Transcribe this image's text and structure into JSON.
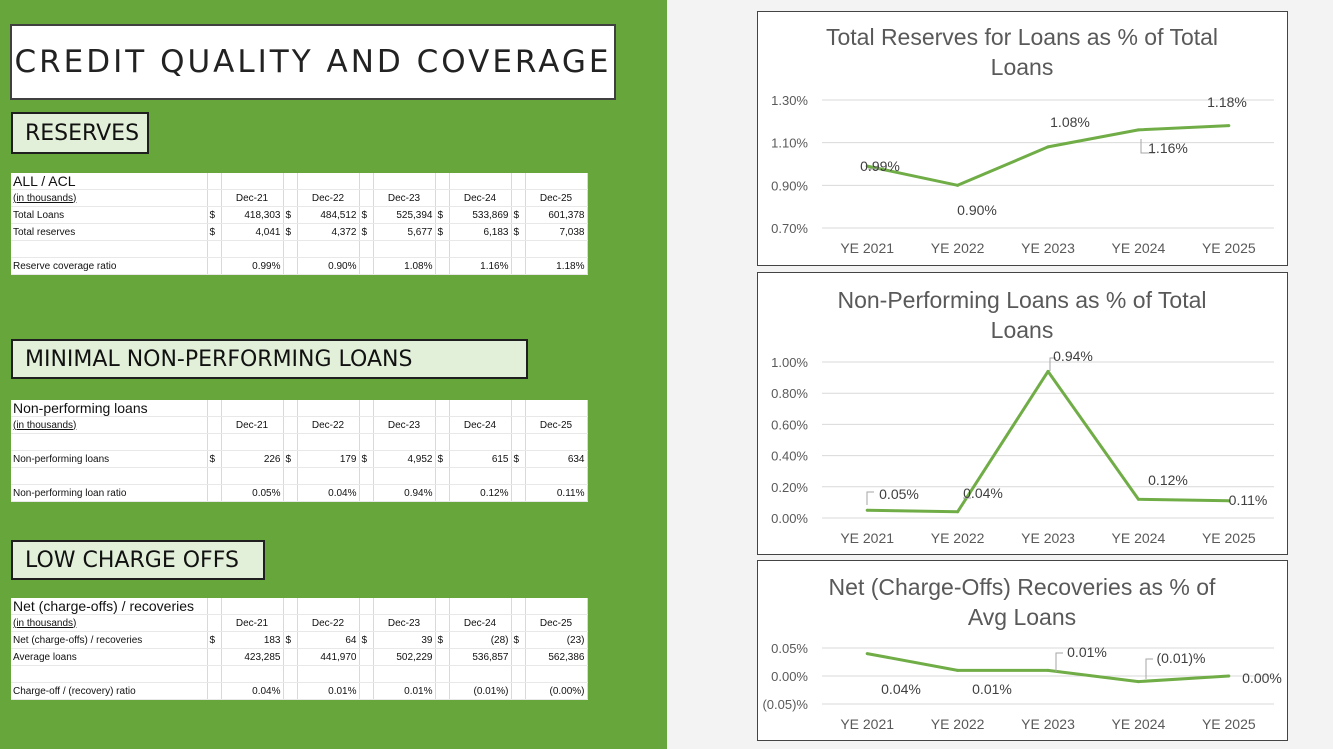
{
  "title": "CREDIT QUALITY AND COVERAGE",
  "sections": {
    "reserves": "RESERVES",
    "npl": "MINIMAL NON-PERFORMING LOANS",
    "chargeoffs": "LOW CHARGE OFFS"
  },
  "tables": {
    "reserves": {
      "title": "ALL / ACL",
      "units": "(in thousands)",
      "columns": [
        "Dec-21",
        "Dec-22",
        "Dec-23",
        "Dec-24",
        "Dec-25"
      ],
      "rows": [
        {
          "label": "Total Loans",
          "cells": [
            "$",
            "418,303",
            "$",
            "484,512",
            "$",
            "525,394",
            "$",
            "533,869",
            "$",
            "601,378"
          ]
        },
        {
          "label": "Total reserves",
          "cells": [
            "$",
            "4,041",
            "$",
            "4,372",
            "$",
            "5,677",
            "$",
            "6,183",
            "$",
            "7,038"
          ]
        },
        {
          "label": "Reserve coverage ratio",
          "cells": [
            "",
            "0.99%",
            "",
            "0.90%",
            "",
            "1.08%",
            "",
            "1.16%",
            "",
            "1.18%"
          ]
        }
      ]
    },
    "npl": {
      "title": "Non-performing loans",
      "units": "(in thousands)",
      "columns": [
        "Dec-21",
        "Dec-22",
        "Dec-23",
        "Dec-24",
        "Dec-25"
      ],
      "rows": [
        {
          "label": "Non-performing loans",
          "cells": [
            "$",
            "226",
            "$",
            "179",
            "$",
            "4,952",
            "$",
            "615",
            "$",
            "634"
          ]
        },
        {
          "label": "Non-performing loan ratio",
          "cells": [
            "",
            "0.05%",
            "",
            "0.04%",
            "",
            "0.94%",
            "",
            "0.12%",
            "",
            "0.11%"
          ]
        }
      ]
    },
    "chargeoffs": {
      "title": "Net (charge-offs) / recoveries",
      "units": "(in thousands)",
      "columns": [
        "Dec-21",
        "Dec-22",
        "Dec-23",
        "Dec-24",
        "Dec-25"
      ],
      "rows": [
        {
          "label": "Net (charge-offs) / recoveries",
          "cells": [
            "$",
            "183",
            "$",
            "64",
            "$",
            "39",
            "$",
            "(28)",
            "$",
            "(23)"
          ]
        },
        {
          "label": "Average loans",
          "cells": [
            "",
            "423,285",
            "",
            "441,970",
            "",
            "502,229",
            "",
            "536,857",
            "",
            "562,386"
          ]
        },
        {
          "label": "Charge-off / (recovery) ratio",
          "cells": [
            "",
            "0.04%",
            "",
            "0.01%",
            "",
            "0.01%",
            "",
            "(0.01%)",
            "",
            "(0.00%)"
          ]
        }
      ]
    }
  },
  "colors": {
    "panel_green": "#66a63a",
    "line_green": "#70ad47",
    "label_bg": "#e2f0d9"
  },
  "chart_data": [
    {
      "type": "line",
      "title": [
        "Total Reserves for Loans as % of Total",
        "Loans"
      ],
      "categories": [
        "YE 2021",
        "YE 2022",
        "YE 2023",
        "YE 2024",
        "YE 2025"
      ],
      "values": [
        0.99,
        0.9,
        1.08,
        1.16,
        1.18
      ],
      "data_labels": [
        "0.99%",
        "0.90%",
        "1.08%",
        "1.16%",
        "1.18%"
      ],
      "yticks": [
        "1.30%",
        "1.10%",
        "0.90%",
        "0.70%"
      ],
      "ylim": [
        0.7,
        1.3
      ],
      "grid": true
    },
    {
      "type": "line",
      "title": [
        "Non-Performing Loans as % of Total",
        "Loans"
      ],
      "categories": [
        "YE 2021",
        "YE 2022",
        "YE 2023",
        "YE 2024",
        "YE 2025"
      ],
      "values": [
        0.05,
        0.04,
        0.94,
        0.12,
        0.11
      ],
      "data_labels": [
        "0.05%",
        "0.04%",
        "0.94%",
        "0.12%",
        "0.11%"
      ],
      "yticks": [
        "1.00%",
        "0.80%",
        "0.60%",
        "0.40%",
        "0.20%",
        "0.00%"
      ],
      "ylim": [
        0.0,
        1.0
      ],
      "grid": true
    },
    {
      "type": "line",
      "title": [
        "Net (Charge-Offs) Recoveries as % of",
        "Avg Loans"
      ],
      "categories": [
        "YE 2021",
        "YE 2022",
        "YE 2023",
        "YE 2024",
        "YE 2025"
      ],
      "values": [
        0.04,
        0.01,
        0.01,
        -0.01,
        0.0
      ],
      "data_labels": [
        "0.04%",
        "0.01%",
        "0.01%",
        "(0.01)%",
        "0.00%"
      ],
      "yticks": [
        "0.05%",
        "0.00%",
        "(0.05)%"
      ],
      "ylim": [
        -0.05,
        0.05
      ],
      "grid": true
    }
  ]
}
